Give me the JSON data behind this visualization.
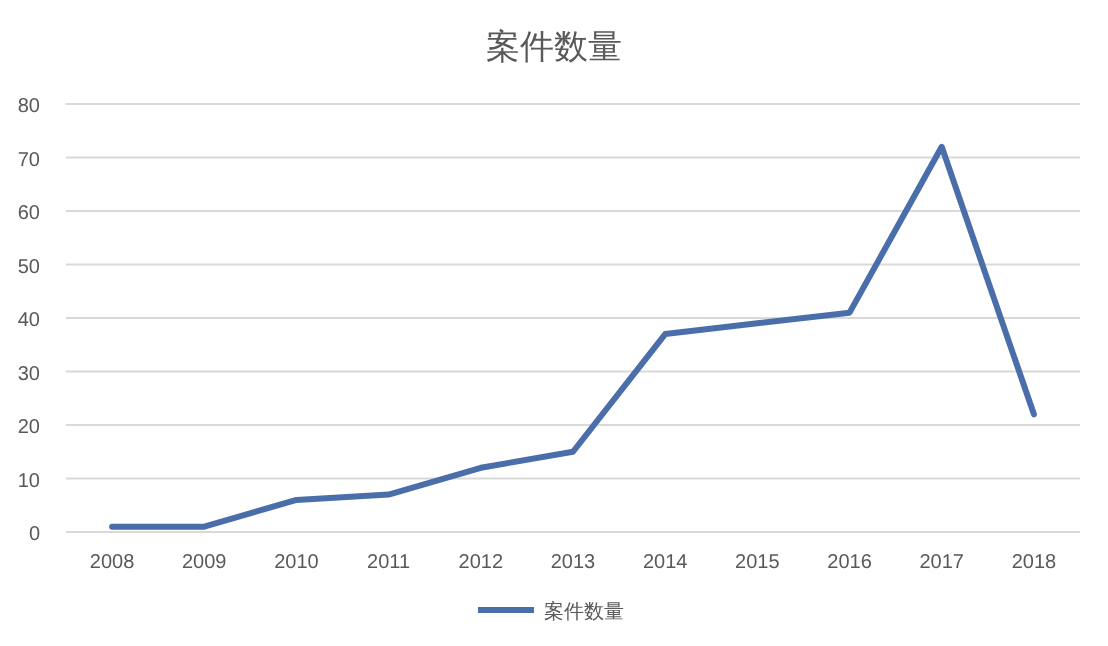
{
  "chart_data": {
    "type": "line",
    "title": "案件数量",
    "categories": [
      "2008",
      "2009",
      "2010",
      "2011",
      "2012",
      "2013",
      "2014",
      "2015",
      "2016",
      "2017",
      "2018"
    ],
    "series": [
      {
        "name": "案件数量",
        "color": "#4a6eaa",
        "values": [
          1,
          1,
          6,
          7,
          12,
          15,
          37,
          39,
          41,
          72,
          22
        ]
      }
    ],
    "ylim": [
      0,
      80
    ],
    "yticks": [
      0,
      10,
      20,
      30,
      40,
      50,
      60,
      70,
      80
    ],
    "grid": "y",
    "legend": "bottom",
    "marker": "none",
    "line_style": "solid"
  }
}
